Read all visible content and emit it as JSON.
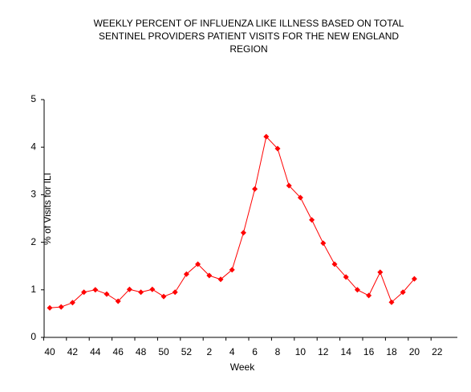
{
  "chart_data": {
    "type": "line",
    "title": [
      "WEEKLY PERCENT OF INFLUENZA LIKE ILLNESS BASED ON TOTAL",
      "SENTINEL PROVIDERS PATIENT VISITS FOR THE NEW ENGLAND",
      "REGION"
    ],
    "x_label": "Week",
    "y_label": "% of Visits for ILI",
    "categories": [
      40,
      null,
      42,
      null,
      44,
      null,
      46,
      null,
      48,
      null,
      50,
      null,
      52,
      null,
      2,
      null,
      4,
      null,
      6,
      null,
      8,
      null,
      10,
      null,
      12,
      null,
      14,
      null,
      16,
      null,
      18,
      null,
      20,
      null,
      22
    ],
    "series": [
      {
        "name": "% of Visits for ILI",
        "color": "#ff0000",
        "values": [
          0.62,
          0.64,
          0.73,
          0.95,
          1.0,
          0.91,
          0.76,
          1.01,
          0.95,
          1.01,
          0.86,
          0.95,
          1.33,
          1.54,
          1.3,
          1.22,
          1.42,
          2.2,
          3.12,
          4.22,
          3.97,
          3.19,
          2.94,
          2.47,
          1.98,
          1.54,
          1.27,
          1.0,
          0.88,
          1.37,
          0.74,
          0.95,
          1.23,
          null,
          null
        ]
      }
    ],
    "ylim": [
      0,
      5
    ],
    "yticks": [
      0,
      1,
      2,
      3,
      4,
      5
    ],
    "grid": false
  }
}
